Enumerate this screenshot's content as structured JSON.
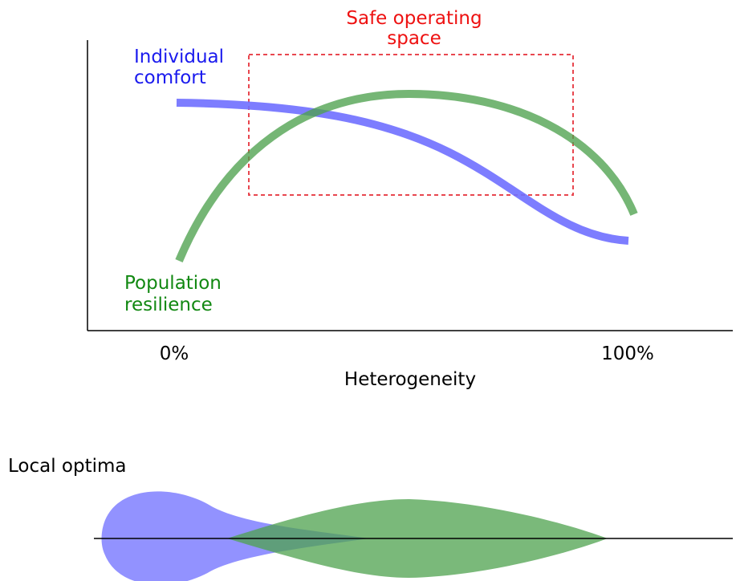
{
  "top_panel": {
    "safe_space_label": [
      "Safe operating",
      "space"
    ],
    "comfort_label": [
      "Individual",
      "comfort"
    ],
    "resilience_label": [
      "Population",
      "resilience"
    ],
    "x_axis": {
      "left_label": "0%",
      "right_label": "100%",
      "title": "Heterogeneity"
    }
  },
  "bottom_panel": {
    "title": "Local optima"
  }
}
